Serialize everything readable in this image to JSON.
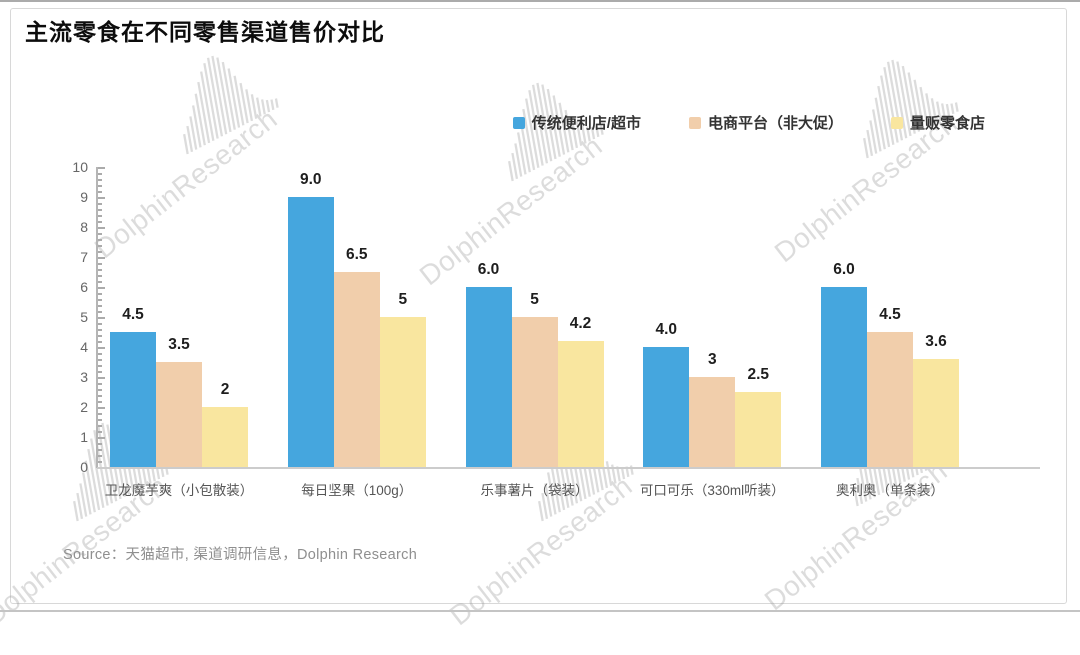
{
  "page": {
    "title": "主流零食在不同零售渠道售价对比",
    "source": "Source：天猫超市, 渠道调研信息，Dolphin Research"
  },
  "watermark": {
    "text": "DolphinResearch",
    "icon": "whale-hatch-logo"
  },
  "legend": [
    {
      "label": "传统便利店/超市",
      "color": "#45A6DE"
    },
    {
      "label": "电商平台（非大促）",
      "color": "#F1CEAB"
    },
    {
      "label": "量贩零食店",
      "color": "#F9E69F"
    }
  ],
  "chart_data": {
    "type": "bar",
    "title": "主流零食在不同零售渠道售价对比",
    "categories": [
      "卫龙魔芋爽（小包散装）",
      "每日坚果（100g）",
      "乐事薯片（袋装）",
      "可口可乐（330ml听装）",
      "奥利奥（单条装）"
    ],
    "series": [
      {
        "name": "传统便利店/超市",
        "color": "#45A6DE",
        "values": [
          4.5,
          9.0,
          6.0,
          4.0,
          6.0
        ],
        "labels": [
          "4.5",
          "9.0",
          "6.0",
          "4.0",
          "6.0"
        ]
      },
      {
        "name": "电商平台（非大促）",
        "color": "#F1CEAB",
        "values": [
          3.5,
          6.5,
          5.0,
          3.0,
          4.5
        ],
        "labels": [
          "3.5",
          "6.5",
          "5",
          "3",
          "4.5"
        ]
      },
      {
        "name": "量贩零食店",
        "color": "#F9E69F",
        "values": [
          2.0,
          5.0,
          4.2,
          2.5,
          3.6
        ],
        "labels": [
          "2",
          "5",
          "4.2",
          "2.5",
          "3.6"
        ]
      }
    ],
    "xlabel": "",
    "ylabel": "",
    "ylim": [
      0,
      10
    ],
    "ytick_step": 1,
    "minor_tick_step": 0.2,
    "grid": false,
    "legend_position": "top-right",
    "source": "Source：天猫超市, 渠道调研信息，Dolphin Research"
  }
}
